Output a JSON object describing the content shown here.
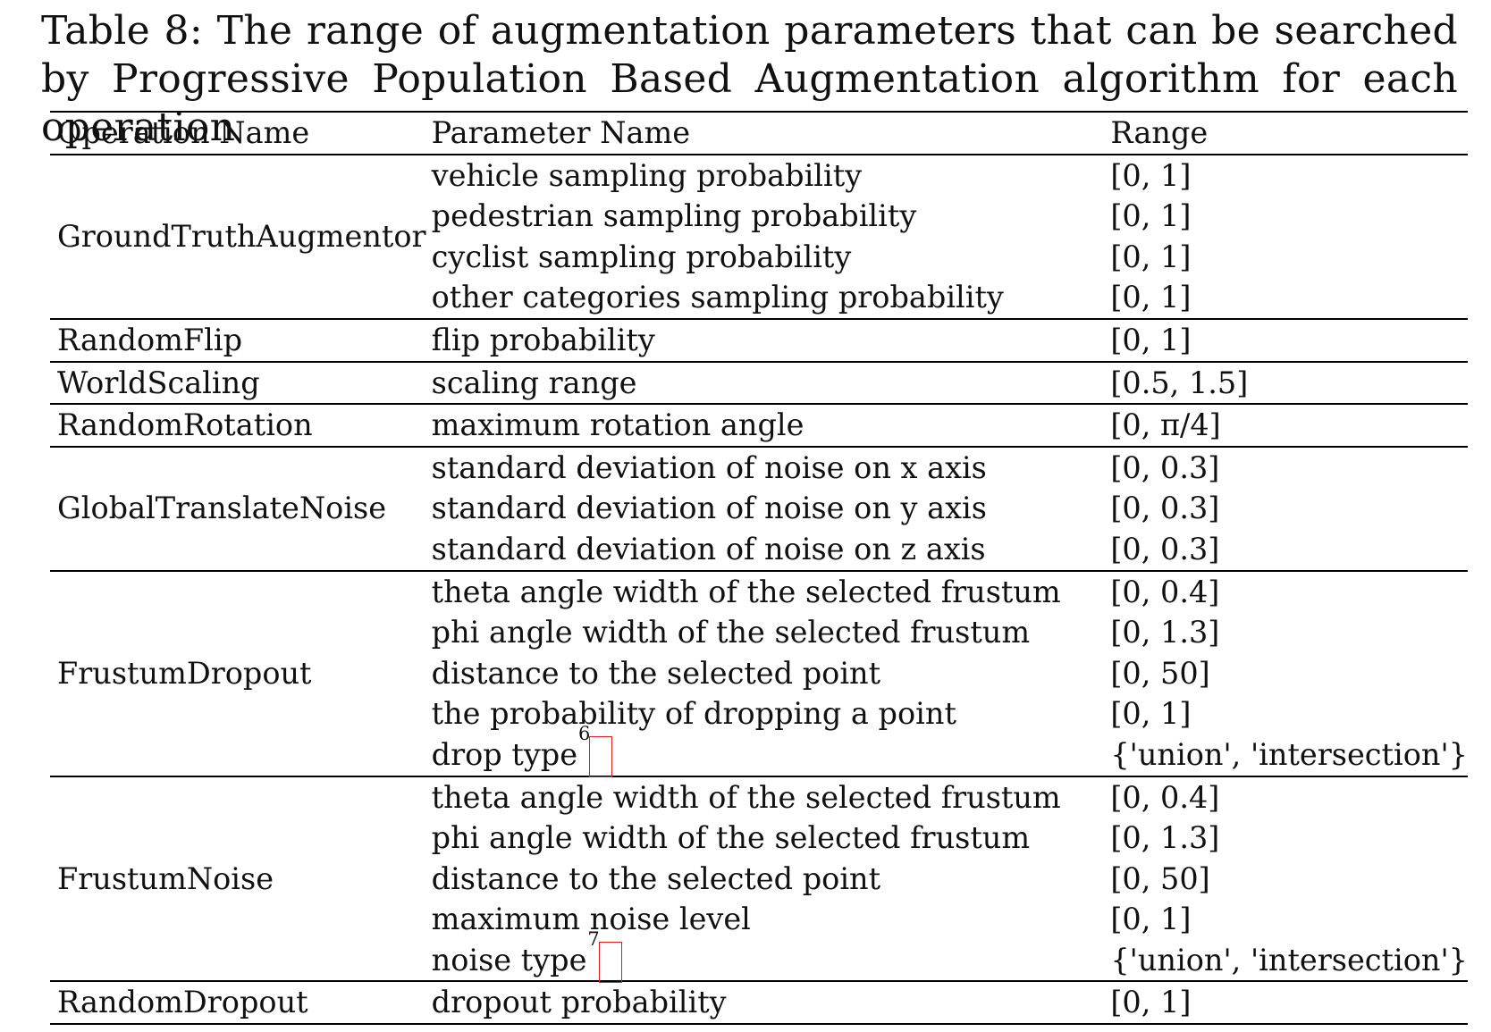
{
  "caption": "Table 8: The range of augmentation parameters that can be searched by Progressive Population Based Augmentation algorithm for each operation",
  "headers": {
    "operation": "Operation Name",
    "parameter": "Parameter Name",
    "range": "Range"
  },
  "groups": [
    {
      "op": "GroundTruthAugmentor",
      "rows": [
        {
          "param": "vehicle sampling probability",
          "range": "[0, 1]"
        },
        {
          "param": "pedestrian sampling probability",
          "range": "[0, 1]"
        },
        {
          "param": "cyclist sampling probability",
          "range": "[0, 1]"
        },
        {
          "param": "other categories sampling probability",
          "range": "[0, 1]"
        }
      ]
    },
    {
      "op": "RandomFlip",
      "rows": [
        {
          "param": "flip probability",
          "range": "[0, 1]"
        }
      ]
    },
    {
      "op": "WorldScaling",
      "rows": [
        {
          "param": "scaling range",
          "range": "[0.5, 1.5]"
        }
      ]
    },
    {
      "op": "RandomRotation",
      "rows": [
        {
          "param": "maximum rotation angle",
          "range": "[0, π/4]"
        }
      ]
    },
    {
      "op": "GlobalTranslateNoise",
      "rows": [
        {
          "param": "standard deviation of noise on x axis",
          "range": "[0, 0.3]"
        },
        {
          "param": "standard deviation of noise on y axis",
          "range": "[0, 0.3]"
        },
        {
          "param": "standard deviation of noise on z axis",
          "range": "[0, 0.3]"
        }
      ]
    },
    {
      "op": "FrustumDropout",
      "rows": [
        {
          "param": "theta angle width of the selected frustum",
          "range": "[0, 0.4]"
        },
        {
          "param": "phi angle width of the selected frustum",
          "range": "[0, 1.3]"
        },
        {
          "param": "distance to the selected point",
          "range": "[0, 50]"
        },
        {
          "param": "the probability of dropping a point",
          "range": "[0, 1]"
        },
        {
          "param": "drop type",
          "footnote": "6",
          "range": "{'union', 'intersection'}"
        }
      ]
    },
    {
      "op": "FrustumNoise",
      "rows": [
        {
          "param": "theta angle width of the selected frustum",
          "range": "[0, 0.4]"
        },
        {
          "param": "phi angle width of the selected frustum",
          "range": "[0, 1.3]"
        },
        {
          "param": "distance to the selected point",
          "range": "[0, 50]"
        },
        {
          "param": "maximum noise level",
          "range": "[0, 1]"
        },
        {
          "param": "noise type",
          "footnote": "7",
          "range": "{'union', 'intersection'}"
        }
      ]
    },
    {
      "op": "RandomDropout",
      "rows": [
        {
          "param": "dropout probability",
          "range": "[0, 1]"
        }
      ]
    }
  ]
}
